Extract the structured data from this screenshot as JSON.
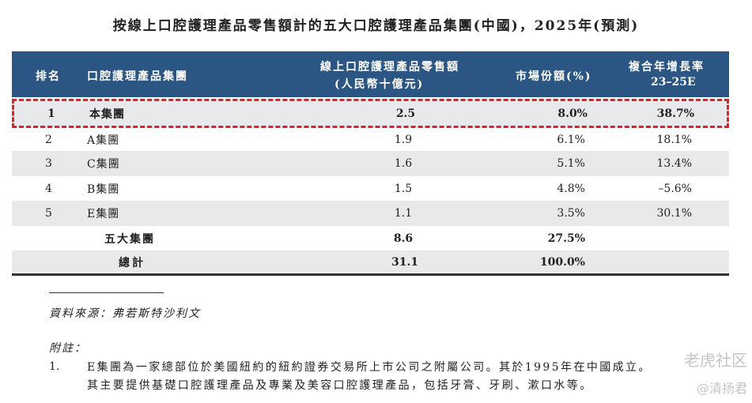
{
  "title": "按線上口腔護理產品零售額計的五大口腔護理產品集團(中國)，2025年(預測)",
  "header": {
    "rank": "排名",
    "group": "口腔護理產品集團",
    "sales_line1": "線上口腔護理產品零售額",
    "sales_line2": "(人民幣十億元)",
    "share": "市場份額(%)",
    "cagr_line1": "複合年增長率",
    "cagr_line2": "23–25E"
  },
  "rows": [
    {
      "rank": "1",
      "group": "本集團",
      "sales": "2.5",
      "share": "8.0%",
      "cagr": "38.7%"
    },
    {
      "rank": "2",
      "group": "A集團",
      "sales": "1.9",
      "share": "6.1%",
      "cagr": "18.1%"
    },
    {
      "rank": "3",
      "group": "C集團",
      "sales": "1.6",
      "share": "5.1%",
      "cagr": "13.4%"
    },
    {
      "rank": "4",
      "group": "B集團",
      "sales": "1.5",
      "share": "4.8%",
      "cagr": "–5.6%"
    },
    {
      "rank": "5",
      "group": "E集團",
      "sales": "1.1",
      "share": "3.5%",
      "cagr": "30.1%"
    }
  ],
  "top5": {
    "label": "五大集團",
    "sales": "8.6",
    "share": "27.5%"
  },
  "total": {
    "label": "總計",
    "sales": "31.1",
    "share": "100.0%"
  },
  "source": "資料來源：弗若斯特沙利文",
  "notes_label": "附註：",
  "note1_num": "1.",
  "note1_text": "E集團為一家總部位於美國紐約的紐約證券交易所上市公司之附屬公司。其於1995年在中國成立。其主要提供基礎口腔護理產品及專業及美容口腔護理產品，包括牙膏、牙刷、漱口水等。",
  "watermark": {
    "line1": "老虎社区",
    "line2": "@清扬君"
  },
  "colors": {
    "header_bg": "#2b5683",
    "highlight_border": "#e0202a",
    "stripe": "#e8e9ea"
  }
}
